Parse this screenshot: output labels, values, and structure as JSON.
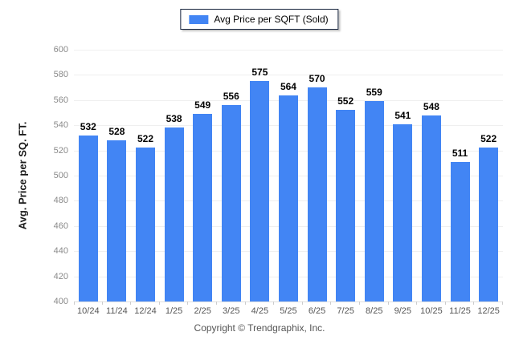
{
  "chart_data": {
    "type": "bar",
    "title": "",
    "legend_entries": [
      {
        "label": "Avg Price per SQFT (Sold)",
        "color": "#4285f4"
      }
    ],
    "legend_position": "top-center",
    "xlabel": "",
    "ylabel": "Avg. Price per SQ. FT.",
    "categories": [
      "10/24",
      "11/24",
      "12/24",
      "1/25",
      "2/25",
      "3/25",
      "4/25",
      "5/25",
      "6/25",
      "7/25",
      "8/25",
      "9/25",
      "10/25",
      "11/25",
      "12/25"
    ],
    "values": [
      532,
      528,
      522,
      538,
      549,
      556,
      575,
      564,
      570,
      552,
      559,
      541,
      548,
      511,
      522
    ],
    "ylim": [
      400,
      600
    ],
    "ytick_step": 20,
    "grid": true,
    "bar_color": "#4285f4",
    "value_labels_shown": true
  },
  "footer": {
    "copyright": "Copyright © Trendgraphix, Inc."
  }
}
